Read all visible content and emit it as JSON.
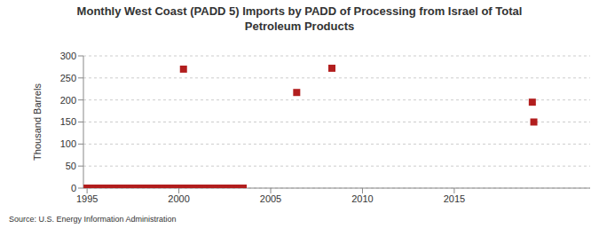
{
  "chart_data": {
    "type": "scatter",
    "title": "Monthly West Coast (PADD 5) Imports by PADD of Processing from Israel of Total Petroleum Products",
    "ylabel": "Thousand Barrels",
    "annotations": [
      "Source: U.S. Energy Information Administration"
    ],
    "x": [
      1995,
      1995.083,
      1995.167,
      1995.25,
      1995.333,
      1995.417,
      1995.5,
      1995.583,
      1995.667,
      1995.75,
      1995.833,
      1995.917,
      1996,
      1996.083,
      1996.167,
      1996.25,
      1996.333,
      1996.417,
      1996.5,
      1996.583,
      1996.667,
      1996.75,
      1996.833,
      1996.917,
      1997,
      1997.083,
      1997.167,
      1997.25,
      1997.333,
      1997.417,
      1997.5,
      1997.583,
      1997.667,
      1997.75,
      1997.833,
      1997.917,
      1998,
      1998.083,
      1998.167,
      1998.25,
      1998.333,
      1998.417,
      1998.5,
      1998.583,
      1998.667,
      1998.75,
      1998.833,
      1998.917,
      1999,
      1999.083,
      1999.167,
      1999.25,
      1999.333,
      1999.417,
      1999.5,
      1999.583,
      1999.667,
      1999.75,
      1999.833,
      1999.917,
      2000,
      2000.083,
      2000.167,
      2000.25,
      2000.333,
      2000.417,
      2000.5,
      2000.583,
      2000.667,
      2000.75,
      2000.833,
      2000.917,
      2001,
      2001.083,
      2001.167,
      2001.25,
      2001.333,
      2001.417,
      2001.5,
      2001.583,
      2001.667,
      2001.75,
      2001.833,
      2001.917,
      2002,
      2002.083,
      2002.167,
      2002.25,
      2002.333,
      2002.417,
      2002.5,
      2002.583,
      2002.667,
      2002.75,
      2002.833,
      2002.917,
      2003,
      2003.083,
      2003.167,
      2003.25,
      2003.333,
      2003.417,
      2003.5,
      2006.417,
      2008.333,
      2019.25,
      2019.333
    ],
    "values": [
      0,
      0,
      0,
      0,
      0,
      0,
      0,
      0,
      0,
      0,
      0,
      0,
      0,
      0,
      0,
      0,
      0,
      0,
      0,
      0,
      0,
      0,
      0,
      0,
      0,
      0,
      0,
      0,
      0,
      0,
      0,
      0,
      0,
      0,
      0,
      0,
      0,
      0,
      0,
      0,
      0,
      0,
      0,
      0,
      0,
      0,
      0,
      0,
      0,
      0,
      0,
      0,
      0,
      0,
      0,
      0,
      0,
      0,
      0,
      0,
      0,
      0,
      0,
      270,
      0,
      0,
      0,
      0,
      0,
      0,
      0,
      0,
      0,
      0,
      0,
      0,
      0,
      0,
      0,
      0,
      0,
      0,
      0,
      0,
      0,
      0,
      0,
      0,
      0,
      0,
      0,
      0,
      0,
      0,
      0,
      0,
      0,
      0,
      0,
      0,
      0,
      0,
      0,
      217,
      272,
      195,
      150
    ],
    "color": "#b21e1e",
    "marker": "square",
    "xlim": [
      1994.8,
      2022.4
    ],
    "xticks": [
      1995,
      2000,
      2005,
      2010,
      2015
    ],
    "ylim": [
      0,
      300
    ],
    "yticks": [
      0,
      50,
      100,
      150,
      200,
      250,
      300
    ],
    "grid": true
  }
}
